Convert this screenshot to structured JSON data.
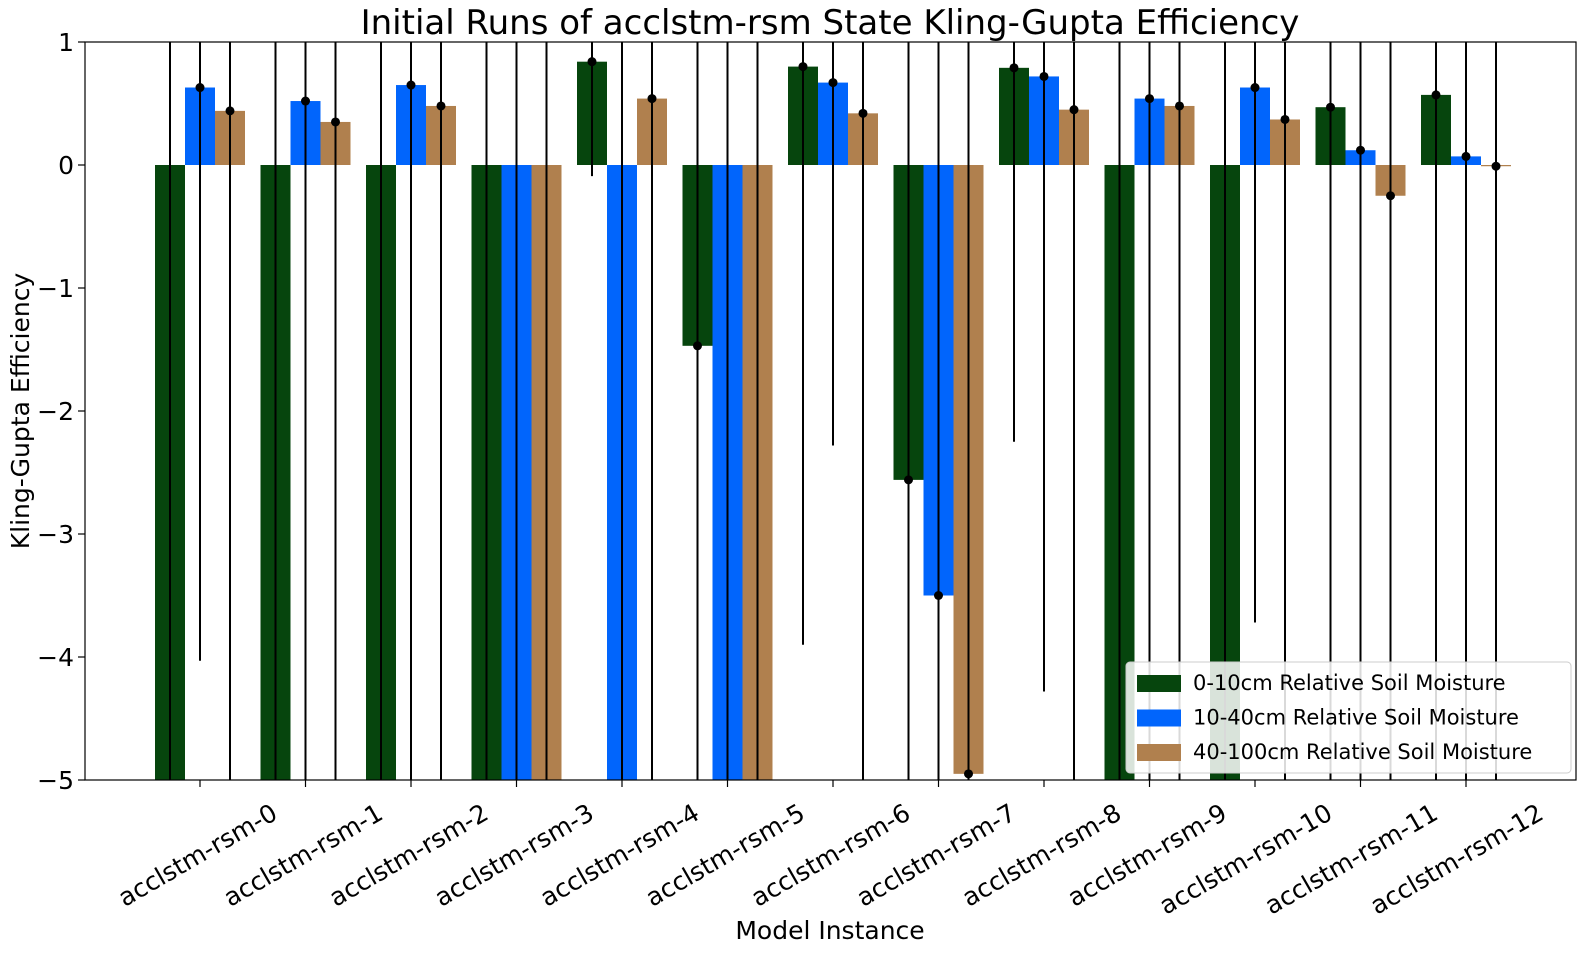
{
  "chart_data": {
    "type": "bar",
    "title": "Initial Runs of acclstm-rsm State Kling-Gupta Efficiency",
    "xlabel": "Model Instance",
    "ylabel": "Kling-Gupta Efficiency",
    "ylim": [
      -5,
      1
    ],
    "yticks": [
      1,
      0,
      -1,
      -2,
      -3,
      -4,
      -5
    ],
    "ytick_labels": [
      "1",
      "0",
      "−1",
      "−2",
      "−3",
      "−4",
      "−5"
    ],
    "grid": false,
    "legend_position": "lower-right",
    "categories": [
      "acclstm-rsm-0",
      "acclstm-rsm-1",
      "acclstm-rsm-2",
      "acclstm-rsm-3",
      "acclstm-rsm-4",
      "acclstm-rsm-5",
      "acclstm-rsm-6",
      "acclstm-rsm-7",
      "acclstm-rsm-8",
      "acclstm-rsm-9",
      "acclstm-rsm-10",
      "acclstm-rsm-11",
      "acclstm-rsm-12"
    ],
    "series": [
      {
        "name": "0-10cm Relative Soil Moisture",
        "color": "#06450d",
        "values": [
          -5.5,
          -5.5,
          -5.5,
          -5.5,
          0.84,
          -1.47,
          0.8,
          -2.56,
          0.79,
          -5.5,
          -5.5,
          0.47,
          0.57
        ],
        "error_low": [
          -5.5,
          -5.5,
          -5.5,
          -5.5,
          -0.09,
          -5.5,
          -3.9,
          -5.5,
          -2.25,
          -5.5,
          -5.5,
          -5.5,
          -5.5
        ],
        "error_high": [
          1.5,
          1.5,
          1.5,
          1.5,
          1.5,
          1.5,
          1.5,
          1.5,
          1.5,
          1.5,
          1.5,
          1.5,
          1.5
        ]
      },
      {
        "name": "10-40cm Relative Soil Moisture",
        "color": "#0165fc",
        "values": [
          0.63,
          0.52,
          0.65,
          -5.5,
          -5.5,
          -5.5,
          0.67,
          -3.5,
          0.72,
          0.54,
          0.63,
          0.12,
          0.07
        ],
        "error_low": [
          -4.03,
          -5.5,
          -5.5,
          -5.5,
          -5.5,
          -5.5,
          -2.28,
          -5.5,
          -4.28,
          -5.5,
          -3.72,
          -5.5,
          -5.5
        ],
        "error_high": [
          1.5,
          1.5,
          1.5,
          1.5,
          1.5,
          1.5,
          1.5,
          1.5,
          1.5,
          1.5,
          1.5,
          1.5,
          1.5
        ]
      },
      {
        "name": "40-100cm Relative Soil Moisture",
        "color": "#b0804e",
        "values": [
          0.44,
          0.35,
          0.48,
          -5.5,
          0.54,
          -5.5,
          0.42,
          -4.95,
          0.45,
          0.48,
          0.37,
          -0.25,
          -0.01
        ],
        "error_low": [
          -5.5,
          -5.5,
          -5.5,
          -5.5,
          -5.5,
          -5.5,
          -5.5,
          -5.5,
          -5.5,
          -5.5,
          -5.5,
          -5.5,
          -5.5
        ],
        "error_high": [
          1.5,
          1.5,
          1.5,
          1.5,
          1.5,
          1.5,
          1.5,
          1.5,
          1.5,
          1.5,
          1.5,
          1.5,
          1.5
        ]
      }
    ]
  }
}
